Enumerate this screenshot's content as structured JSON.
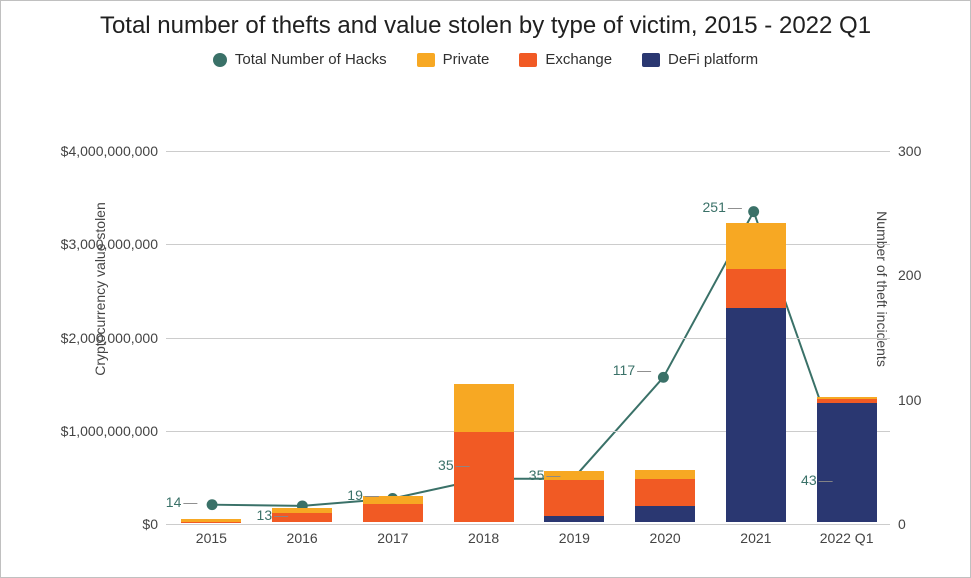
{
  "chart": {
    "type": "stacked-bar-with-line",
    "title": "Total number of thefts and value stolen by type of victim, 2015 - 2022 Q1",
    "title_fontsize": 24,
    "title_color": "#202020",
    "background_color": "#ffffff",
    "border_color": "#c0c0c0",
    "grid_color": "#cccccc",
    "axis_text_color": "#444444",
    "label_color": "#3a7168",
    "y_left": {
      "label": "Cryptocurrency value stolen",
      "min": 0,
      "max": 4000000000,
      "ticks": [
        {
          "v": 0,
          "label": "$0"
        },
        {
          "v": 1000000000,
          "label": "$1,000,000,000"
        },
        {
          "v": 2000000000,
          "label": "$2,000,000,000"
        },
        {
          "v": 3000000000,
          "label": "$3,000,000,000"
        },
        {
          "v": 4000000000,
          "label": "$4,000,000,000"
        }
      ]
    },
    "y_right": {
      "label": "Number of theft incidents",
      "min": 0,
      "max": 300,
      "ticks": [
        {
          "v": 0,
          "label": "0"
        },
        {
          "v": 100,
          "label": "100"
        },
        {
          "v": 200,
          "label": "200"
        },
        {
          "v": 300,
          "label": "300"
        }
      ]
    },
    "categories": [
      "2015",
      "2016",
      "2017",
      "2018",
      "2019",
      "2020",
      "2021",
      "2022 Q1"
    ],
    "series": {
      "defi": {
        "label": "DeFi platform",
        "color": "#2a3771",
        "values": [
          0,
          0,
          0,
          0,
          60000000,
          170000000,
          2300000000,
          1280000000
        ]
      },
      "exchange": {
        "label": "Exchange",
        "color": "#f15a24",
        "values": [
          5000000,
          100000000,
          190000000,
          970000000,
          390000000,
          290000000,
          410000000,
          40000000
        ]
      },
      "private": {
        "label": "Private",
        "color": "#f7a823",
        "values": [
          25000000,
          50000000,
          90000000,
          510000000,
          100000000,
          100000000,
          500000000,
          20000000
        ]
      }
    },
    "line": {
      "label": "Total Number of Hacks",
      "color": "#3a7168",
      "marker_color": "#3a7168",
      "marker_radius": 5.5,
      "line_width": 2,
      "values": [
        14,
        13,
        19,
        35,
        35,
        117,
        251,
        43
      ],
      "label_side": [
        "left",
        "left",
        "left",
        "left",
        "left",
        "left",
        "left",
        "left"
      ],
      "label_dy": [
        -4,
        8,
        -4,
        -14,
        -4,
        -8,
        -4,
        10
      ]
    },
    "legend_order": [
      "line",
      "private",
      "exchange",
      "defi"
    ],
    "bar_width_ratio": 0.66
  }
}
